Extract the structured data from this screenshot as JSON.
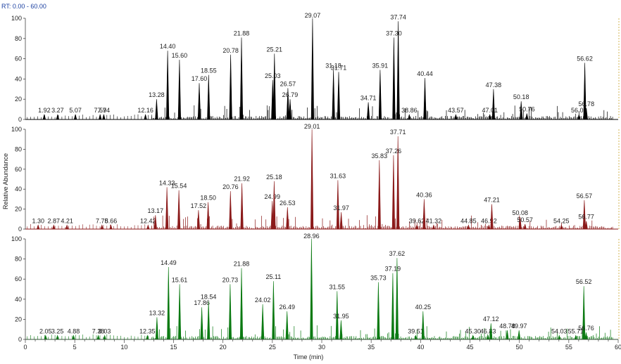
{
  "chart_data": {
    "type": "line",
    "title": "",
    "rt_range_label": "RT: 0.00 - 60.00",
    "xlabel": "Time (min)",
    "ylabel": "Relative Abundance",
    "xlim": [
      0,
      60
    ],
    "ylim": [
      0,
      100
    ],
    "x_ticks": [
      0,
      5,
      10,
      15,
      20,
      25,
      30,
      35,
      40,
      45,
      50,
      55,
      60
    ],
    "y_ticks": [
      0,
      20,
      40,
      60,
      80,
      100
    ],
    "series": [
      {
        "name": "Trace 1",
        "color": "#000000",
        "peaks": [
          {
            "rt": 1.92,
            "label": "1.92",
            "intensity": 5
          },
          {
            "rt": 3.27,
            "label": "3.27",
            "intensity": 5
          },
          {
            "rt": 5.07,
            "label": "5.07",
            "intensity": 5
          },
          {
            "rt": 7.57,
            "label": "7.57",
            "intensity": 5
          },
          {
            "rt": 7.94,
            "label": "7.94",
            "intensity": 5
          },
          {
            "rt": 12.16,
            "label": "12.16",
            "intensity": 5
          },
          {
            "rt": 13.28,
            "label": "13.28",
            "intensity": 20
          },
          {
            "rt": 14.4,
            "label": "14.40",
            "intensity": 68
          },
          {
            "rt": 15.6,
            "label": "15.60",
            "intensity": 59
          },
          {
            "rt": 17.6,
            "label": "17.60",
            "intensity": 36
          },
          {
            "rt": 18.55,
            "label": "18.55",
            "intensity": 44
          },
          {
            "rt": 20.78,
            "label": "20.78",
            "intensity": 64
          },
          {
            "rt": 21.88,
            "label": "21.88",
            "intensity": 81
          },
          {
            "rt": 25.03,
            "label": "25.03",
            "intensity": 39
          },
          {
            "rt": 25.21,
            "label": "25.21",
            "intensity": 65
          },
          {
            "rt": 26.57,
            "label": "26.57",
            "intensity": 31
          },
          {
            "rt": 26.79,
            "label": "26.79",
            "intensity": 20
          },
          {
            "rt": 29.07,
            "label": "29.07",
            "intensity": 100
          },
          {
            "rt": 31.18,
            "label": "31.18",
            "intensity": 49
          },
          {
            "rt": 31.71,
            "label": "31.71",
            "intensity": 47
          },
          {
            "rt": 34.71,
            "label": "34.71",
            "intensity": 17
          },
          {
            "rt": 35.91,
            "label": "35.91",
            "intensity": 49
          },
          {
            "rt": 37.3,
            "label": "37.30",
            "intensity": 81
          },
          {
            "rt": 37.74,
            "label": "37.74",
            "intensity": 97
          },
          {
            "rt": 38.86,
            "label": "38.86",
            "intensity": 5
          },
          {
            "rt": 40.44,
            "label": "40.44",
            "intensity": 41
          },
          {
            "rt": 43.57,
            "label": "43.57",
            "intensity": 5
          },
          {
            "rt": 47.01,
            "label": "47.01",
            "intensity": 5
          },
          {
            "rt": 47.38,
            "label": "47.38",
            "intensity": 30
          },
          {
            "rt": 50.18,
            "label": "50.18",
            "intensity": 18
          },
          {
            "rt": 50.76,
            "label": "50.76",
            "intensity": 6
          },
          {
            "rt": 56.03,
            "label": "56.03",
            "intensity": 5
          },
          {
            "rt": 56.62,
            "label": "56.62",
            "intensity": 56
          },
          {
            "rt": 56.78,
            "label": "56.78",
            "intensity": 11
          }
        ]
      },
      {
        "name": "Trace 2",
        "color": "#8b1a1a",
        "peaks": [
          {
            "rt": 1.3,
            "label": "1.30",
            "intensity": 4
          },
          {
            "rt": 2.87,
            "label": "2.87",
            "intensity": 4
          },
          {
            "rt": 4.21,
            "label": "4.21",
            "intensity": 4
          },
          {
            "rt": 7.75,
            "label": "7.75",
            "intensity": 4
          },
          {
            "rt": 8.66,
            "label": "8.66",
            "intensity": 4
          },
          {
            "rt": 12.42,
            "label": "12.42",
            "intensity": 4
          },
          {
            "rt": 13.17,
            "label": "13.17",
            "intensity": 14
          },
          {
            "rt": 14.33,
            "label": "14.33",
            "intensity": 42
          },
          {
            "rt": 15.54,
            "label": "15.54",
            "intensity": 39
          },
          {
            "rt": 17.52,
            "label": "17.52",
            "intensity": 19
          },
          {
            "rt": 18.5,
            "label": "18.50",
            "intensity": 27
          },
          {
            "rt": 20.76,
            "label": "20.76",
            "intensity": 38
          },
          {
            "rt": 21.92,
            "label": "21.92",
            "intensity": 46
          },
          {
            "rt": 24.99,
            "label": "24.99",
            "intensity": 28
          },
          {
            "rt": 25.18,
            "label": "25.18",
            "intensity": 48
          },
          {
            "rt": 26.53,
            "label": "26.53",
            "intensity": 22
          },
          {
            "rt": 29.01,
            "label": "29.01",
            "intensity": 100
          },
          {
            "rt": 31.63,
            "label": "31.63",
            "intensity": 49
          },
          {
            "rt": 31.97,
            "label": "31.97",
            "intensity": 17
          },
          {
            "rt": 35.83,
            "label": "35.83",
            "intensity": 69
          },
          {
            "rt": 37.26,
            "label": "37.26",
            "intensity": 74
          },
          {
            "rt": 37.71,
            "label": "37.71",
            "intensity": 93
          },
          {
            "rt": 39.62,
            "label": "39.62",
            "intensity": 4
          },
          {
            "rt": 40.36,
            "label": "40.36",
            "intensity": 30
          },
          {
            "rt": 41.32,
            "label": "41.32",
            "intensity": 4
          },
          {
            "rt": 44.85,
            "label": "44.85",
            "intensity": 4
          },
          {
            "rt": 46.92,
            "label": "46.92",
            "intensity": 4
          },
          {
            "rt": 47.21,
            "label": "47.21",
            "intensity": 25
          },
          {
            "rt": 50.08,
            "label": "50.08",
            "intensity": 12
          },
          {
            "rt": 50.57,
            "label": "50.57",
            "intensity": 5
          },
          {
            "rt": 54.25,
            "label": "54.25",
            "intensity": 4
          },
          {
            "rt": 56.57,
            "label": "56.57",
            "intensity": 29
          },
          {
            "rt": 56.77,
            "label": "56.77",
            "intensity": 8
          }
        ]
      },
      {
        "name": "Trace 3",
        "color": "#0b7a12",
        "peaks": [
          {
            "rt": 2.05,
            "label": "2.05",
            "intensity": 4
          },
          {
            "rt": 3.25,
            "label": "3.25",
            "intensity": 4
          },
          {
            "rt": 4.88,
            "label": "4.88",
            "intensity": 4
          },
          {
            "rt": 7.38,
            "label": "7.38",
            "intensity": 4
          },
          {
            "rt": 8.03,
            "label": "8.03",
            "intensity": 4
          },
          {
            "rt": 12.35,
            "label": "12.35",
            "intensity": 4
          },
          {
            "rt": 13.32,
            "label": "13.32",
            "intensity": 22
          },
          {
            "rt": 14.49,
            "label": "14.49",
            "intensity": 72
          },
          {
            "rt": 15.61,
            "label": "15.61",
            "intensity": 55
          },
          {
            "rt": 17.86,
            "label": "17.86",
            "intensity": 32
          },
          {
            "rt": 18.54,
            "label": "18.54",
            "intensity": 38
          },
          {
            "rt": 20.73,
            "label": "20.73",
            "intensity": 55
          },
          {
            "rt": 21.88,
            "label": "21.88",
            "intensity": 71
          },
          {
            "rt": 24.02,
            "label": "24.02",
            "intensity": 35
          },
          {
            "rt": 25.11,
            "label": "25.11",
            "intensity": 58
          },
          {
            "rt": 26.49,
            "label": "26.49",
            "intensity": 28
          },
          {
            "rt": 28.96,
            "label": "28.96",
            "intensity": 100
          },
          {
            "rt": 31.55,
            "label": "31.55",
            "intensity": 48
          },
          {
            "rt": 31.95,
            "label": "31.95",
            "intensity": 19
          },
          {
            "rt": 35.73,
            "label": "35.73",
            "intensity": 57
          },
          {
            "rt": 37.19,
            "label": "37.19",
            "intensity": 66
          },
          {
            "rt": 37.62,
            "label": "37.62",
            "intensity": 81
          },
          {
            "rt": 39.51,
            "label": "39.51",
            "intensity": 4
          },
          {
            "rt": 40.25,
            "label": "40.25",
            "intensity": 28
          },
          {
            "rt": 45.3,
            "label": "45.30",
            "intensity": 4
          },
          {
            "rt": 46.83,
            "label": "46.83",
            "intensity": 4
          },
          {
            "rt": 47.12,
            "label": "47.12",
            "intensity": 16
          },
          {
            "rt": 48.78,
            "label": "48.78",
            "intensity": 9
          },
          {
            "rt": 49.97,
            "label": "49.97",
            "intensity": 9
          },
          {
            "rt": 54.03,
            "label": "54.03",
            "intensity": 4
          },
          {
            "rt": 55.71,
            "label": "55.71",
            "intensity": 4
          },
          {
            "rt": 56.52,
            "label": "56.52",
            "intensity": 53
          },
          {
            "rt": 56.76,
            "label": "56.76",
            "intensity": 7
          }
        ]
      }
    ]
  }
}
